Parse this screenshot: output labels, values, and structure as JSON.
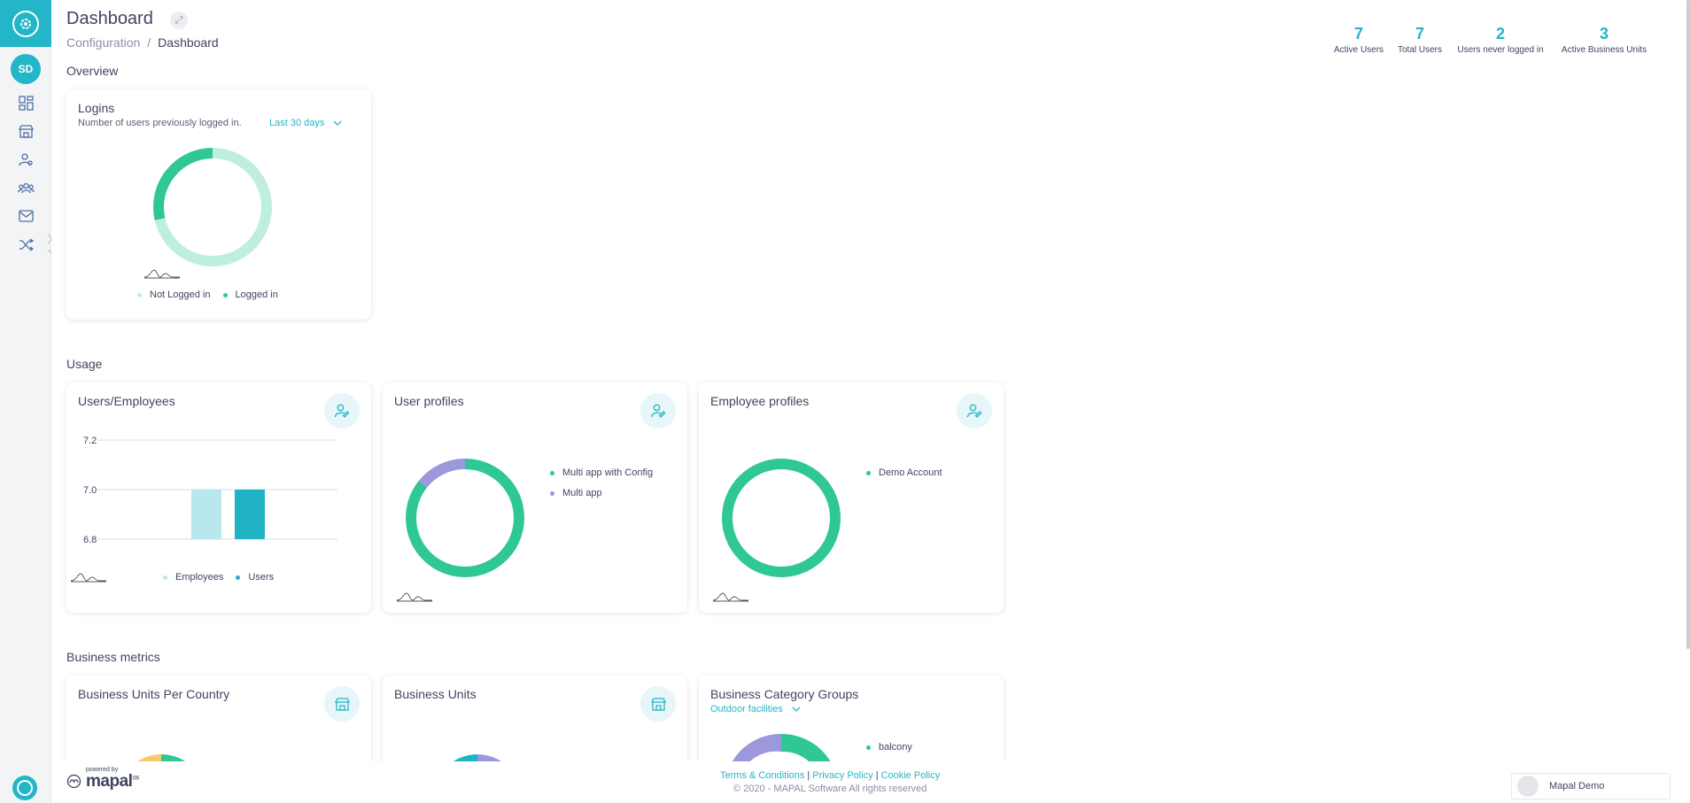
{
  "header": {
    "title": "Dashboard",
    "breadcrumb": [
      "Configuration",
      "Dashboard"
    ]
  },
  "stats": [
    {
      "value": "7",
      "label": "Active Users"
    },
    {
      "value": "7",
      "label": "Total Users"
    },
    {
      "value": "2",
      "label": "Users never logged in"
    },
    {
      "value": "3",
      "label": "Active Business Units"
    }
  ],
  "user": {
    "initials": "SD"
  },
  "sections": {
    "overview": "Overview",
    "usage": "Usage",
    "business": "Business metrics"
  },
  "logins": {
    "title": "Logins",
    "subtitle": "Number of users previously logged in.",
    "period": "Last 30 days",
    "legend": [
      "Not Logged in",
      "Logged in"
    ]
  },
  "users_employees": {
    "title": "Users/Employees",
    "legend": [
      "Employees",
      "Users"
    ]
  },
  "user_profiles": {
    "title": "User profiles",
    "legend": [
      "Multi app with Config",
      "Multi app"
    ]
  },
  "employee_profiles": {
    "title": "Employee profiles",
    "legend": [
      "Demo Account"
    ]
  },
  "bu_per_country": {
    "title": "Business Units Per Country"
  },
  "business_units": {
    "title": "Business Units"
  },
  "category_groups": {
    "title": "Business Category Groups",
    "filter": "Outdoor facilities",
    "legend": [
      "balcony"
    ]
  },
  "footer": {
    "powered_by": "powered by",
    "brand": "mapal",
    "brand_suffix": "os",
    "links": [
      "Terms & Conditions",
      "Privacy Policy",
      "Cookie Policy"
    ],
    "copyright": "© 2020 - MAPAL Software All rights reserved",
    "account": "Mapal Demo"
  },
  "colors": {
    "accent": "#23b5c8",
    "green": "#2ec795",
    "light_green": "#bfeee1",
    "purple": "#9b98dc",
    "light_cyan": "#b8e8ee",
    "yellow": "#f6cc6a"
  },
  "chart_data": [
    {
      "type": "pie",
      "title": "Logins",
      "categories": [
        "Not Logged in",
        "Logged in"
      ],
      "values": [
        5,
        2
      ]
    },
    {
      "type": "bar",
      "title": "Users/Employees",
      "categories": [
        "Employees",
        "Users"
      ],
      "values": [
        7,
        7
      ],
      "ylim": [
        6.8,
        7.2
      ],
      "yticks": [
        "7.2",
        "7.0",
        "6.8"
      ]
    },
    {
      "type": "pie",
      "title": "User profiles",
      "categories": [
        "Multi app with Config",
        "Multi app"
      ],
      "values": [
        6,
        1
      ]
    },
    {
      "type": "pie",
      "title": "Employee profiles",
      "categories": [
        "Demo Account"
      ],
      "values": [
        1
      ]
    }
  ]
}
